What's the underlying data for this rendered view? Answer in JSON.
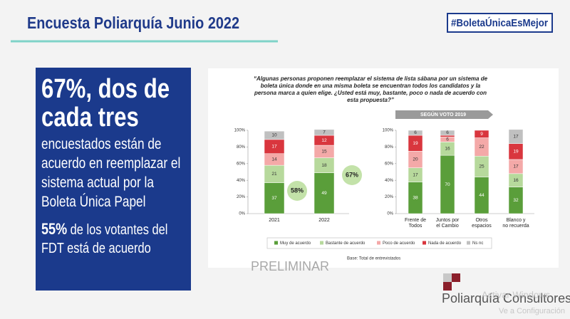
{
  "header": {
    "title": "Encuesta Poliarquía Junio 2022",
    "hashtag": "#BoletaÚnicaEsMejor"
  },
  "box": {
    "headline": "67%, dos de cada tres",
    "text": "encuestados están de acuerdo en reemplazar el sistema actual por la Boleta Única Papel",
    "stat": "55%",
    "stat_text": "de los votantes del FDT está de acuerdo"
  },
  "question": "“Algunas personas proponen reemplazar el sistema de lista sábana por un sistema de boleta única donde en una misma boleta se encuentran todos los candidatos y la persona marca a quien elige. ¿Usted está muy, bastante, poco o nada de acuerdo con esta propuesta?”",
  "ribbon": "SEGÚN VOTO 2019",
  "base": "Base: Total de entrevistados",
  "watermark": "PRELIMINAR",
  "logo": "Poliarquía Consultores",
  "os_notice": [
    "Activar Windows",
    "Ve a Configuración"
  ],
  "chart_data": [
    {
      "type": "stacked_bar",
      "categories": [
        "2021",
        "2022"
      ],
      "series": [
        {
          "name": "Muy de acuerdo",
          "color": "#5a9e3a",
          "values": [
            37,
            49
          ]
        },
        {
          "name": "Bastante de acuerdo",
          "color": "#b7d99c",
          "values": [
            21,
            18
          ]
        },
        {
          "name": "Poco de acuerdo",
          "color": "#f4a9a8",
          "values": [
            14,
            15
          ]
        },
        {
          "name": "Nada de acuerdo",
          "color": "#d9363e",
          "values": [
            17,
            12
          ]
        },
        {
          "name": "Ns nc",
          "color": "#c0c0c0",
          "values": [
            10,
            7
          ]
        }
      ],
      "ylim": [
        0,
        100
      ],
      "yticks": [
        {
          "value": 0,
          "label": "0%"
        },
        {
          "value": 20,
          "label": "20%"
        },
        {
          "value": 40,
          "label": "40%"
        },
        {
          "value": 60,
          "label": "60%"
        },
        {
          "value": 80,
          "label": "80%"
        },
        {
          "value": 100,
          "label": "100%"
        }
      ],
      "annotations": [
        "58%",
        "67%"
      ]
    },
    {
      "type": "stacked_bar",
      "categories": [
        "Frente de Todos",
        "Juntos por el Cambio",
        "Otros espacios",
        "Blanco y no recuerda"
      ],
      "series": [
        {
          "name": "Muy de acuerdo",
          "color": "#5a9e3a",
          "values": [
            38,
            70,
            44,
            32
          ]
        },
        {
          "name": "Bastante de acuerdo",
          "color": "#b7d99c",
          "values": [
            17,
            16,
            25,
            16
          ]
        },
        {
          "name": "Poco de acuerdo",
          "color": "#f4a9a8",
          "values": [
            20,
            6,
            22,
            17
          ]
        },
        {
          "name": "Nada de acuerdo",
          "color": "#d9363e",
          "values": [
            19,
            2,
            9,
            19
          ]
        },
        {
          "name": "Ns nc",
          "color": "#c0c0c0",
          "values": [
            6,
            6,
            0,
            17
          ]
        }
      ],
      "ylim": [
        0,
        100
      ],
      "yticks": [
        {
          "value": 0,
          "label": "0%"
        },
        {
          "value": 20,
          "label": "20%"
        },
        {
          "value": 40,
          "label": "40%"
        },
        {
          "value": 60,
          "label": "60%"
        },
        {
          "value": 80,
          "label": "80%"
        },
        {
          "value": 100,
          "label": "100%"
        }
      ]
    }
  ]
}
